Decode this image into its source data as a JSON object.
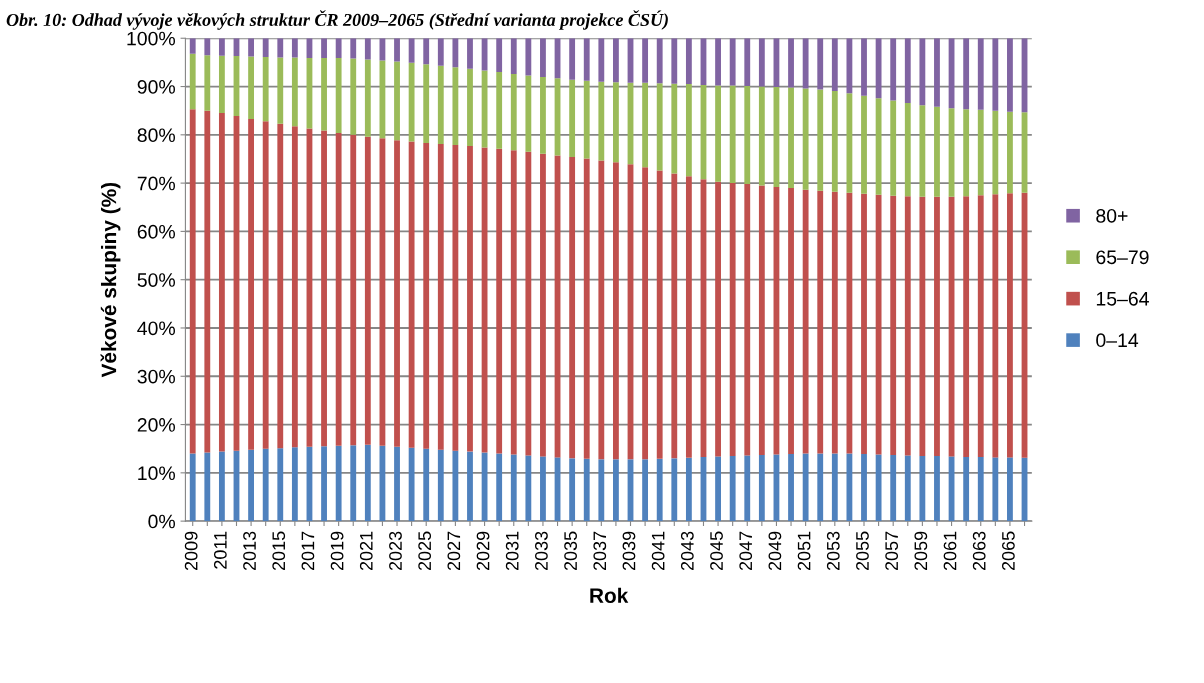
{
  "chart_data": {
    "type": "bar",
    "stacked": true,
    "title": "Obr. 10: Odhad vývoje věkových struktur ČR 2009–2065 (Střední varianta projekce ČSÚ)",
    "xlabel": "Rok",
    "ylabel": "Věkové skupiny (%)",
    "categories": [
      "2009",
      null,
      "2011",
      null,
      "2013",
      null,
      "2015",
      null,
      "2017",
      null,
      "2019",
      null,
      "2021",
      null,
      "2023",
      null,
      "2025",
      null,
      "2027",
      null,
      "2029",
      null,
      "2031",
      null,
      "2033",
      null,
      "2035",
      null,
      "2037",
      null,
      "2039",
      null,
      "2041",
      null,
      "2043",
      null,
      "2045",
      null,
      "2047",
      null,
      "2049",
      null,
      "2051",
      null,
      "2053",
      null,
      "2055",
      null,
      "2057",
      null,
      "2059",
      null,
      "2061",
      null,
      "2063",
      null,
      "2065",
      null
    ],
    "series": [
      {
        "name": "0–14",
        "color": "#4f81bd",
        "values": [
          14.0,
          14.2,
          14.4,
          14.6,
          14.8,
          15.0,
          15.1,
          15.3,
          15.4,
          15.5,
          15.6,
          15.7,
          15.8,
          15.6,
          15.4,
          15.2,
          15.0,
          14.8,
          14.6,
          14.4,
          14.2,
          14.0,
          13.8,
          13.6,
          13.4,
          13.2,
          13.0,
          12.9,
          12.8,
          12.8,
          12.8,
          12.8,
          12.9,
          13.0,
          13.1,
          13.3,
          13.4,
          13.5,
          13.6,
          13.7,
          13.8,
          13.9,
          14.0,
          14.0,
          14.0,
          14.0,
          13.9,
          13.8,
          13.7,
          13.6,
          13.5,
          13.5,
          13.4,
          13.3,
          13.3,
          13.2,
          13.2,
          13.1
        ]
      },
      {
        "name": "15–64",
        "color": "#c0504d",
        "values": [
          71.3,
          70.8,
          70.1,
          69.3,
          68.5,
          67.8,
          67.2,
          66.5,
          65.9,
          65.4,
          64.8,
          64.3,
          63.8,
          63.7,
          63.5,
          63.4,
          63.3,
          63.3,
          63.3,
          63.3,
          63.2,
          63.1,
          63.0,
          62.9,
          62.7,
          62.5,
          62.4,
          62.2,
          61.9,
          61.5,
          61.1,
          60.5,
          59.7,
          59.0,
          58.3,
          57.5,
          56.9,
          56.5,
          56.2,
          55.8,
          55.4,
          55.1,
          54.6,
          54.4,
          54.2,
          54.0,
          53.9,
          53.8,
          53.7,
          53.7,
          53.7,
          53.7,
          53.8,
          54.0,
          54.2,
          54.5,
          54.7,
          54.9
        ]
      },
      {
        "name": "65–79",
        "color": "#9bbb59",
        "values": [
          11.5,
          11.5,
          11.9,
          12.4,
          12.9,
          13.3,
          13.7,
          14.2,
          14.6,
          15.0,
          15.5,
          15.8,
          16.0,
          16.1,
          16.3,
          16.3,
          16.3,
          16.2,
          16.1,
          16.0,
          15.9,
          15.9,
          15.8,
          15.8,
          15.9,
          16.0,
          16.0,
          16.1,
          16.3,
          16.6,
          16.9,
          17.5,
          18.1,
          18.6,
          19.1,
          19.5,
          19.9,
          20.2,
          20.3,
          20.5,
          20.7,
          20.8,
          21.0,
          21.0,
          20.9,
          20.6,
          20.3,
          20.0,
          19.7,
          19.3,
          18.9,
          18.6,
          18.3,
          18.0,
          17.7,
          17.3,
          16.9,
          16.7
        ]
      },
      {
        "name": "80+",
        "color": "#8064a2",
        "values": [
          3.2,
          3.5,
          3.6,
          3.7,
          3.8,
          3.9,
          4.0,
          4.0,
          4.1,
          4.1,
          4.1,
          4.2,
          4.4,
          4.6,
          4.8,
          5.1,
          5.4,
          5.7,
          6.0,
          6.3,
          6.7,
          7.0,
          7.4,
          7.7,
          8.0,
          8.3,
          8.6,
          8.8,
          9.0,
          9.1,
          9.2,
          9.2,
          9.3,
          9.4,
          9.5,
          9.7,
          9.8,
          9.8,
          9.9,
          10.0,
          10.1,
          10.2,
          10.4,
          10.6,
          10.9,
          11.4,
          11.9,
          12.4,
          12.9,
          13.4,
          13.9,
          14.2,
          14.5,
          14.7,
          14.8,
          15.0,
          15.2,
          15.3
        ]
      }
    ],
    "ylim": [
      0,
      100
    ],
    "yticks": [
      {
        "value": 0,
        "label": "0%"
      },
      {
        "value": 10,
        "label": "10%"
      },
      {
        "value": 20,
        "label": "20%"
      },
      {
        "value": 30,
        "label": "30%"
      },
      {
        "value": 40,
        "label": "40%"
      },
      {
        "value": 50,
        "label": "50%"
      },
      {
        "value": 60,
        "label": "60%"
      },
      {
        "value": 70,
        "label": "70%"
      },
      {
        "value": 80,
        "label": "80%"
      },
      {
        "value": 90,
        "label": "90%"
      },
      {
        "value": 100,
        "label": "100%"
      }
    ],
    "grid": "y",
    "legend": "right"
  }
}
